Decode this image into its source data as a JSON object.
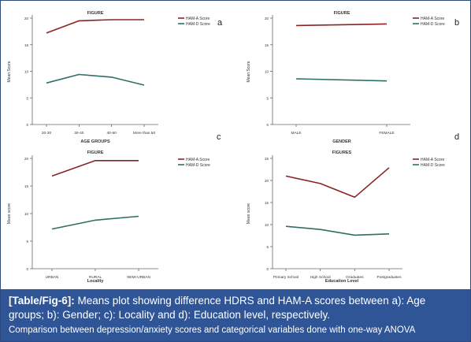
{
  "colors": {
    "anxiety": "#8b2323",
    "depression": "#2e6e66",
    "axis": "#666666",
    "caption_bg": "#2f5597"
  },
  "chart_data": [
    {
      "type": "line",
      "panel_letter": "a",
      "title": "FIGURE",
      "xlabel": "AGE GROUPS",
      "ylabel": "Mean Score",
      "categories": [
        "20-30",
        "30-40",
        "40-60",
        "More than 50"
      ],
      "ylim": [
        0,
        20
      ],
      "yticks": [
        "0",
        "5",
        "10",
        "15",
        "20"
      ],
      "grid": false,
      "legend": "top-right",
      "series": [
        {
          "name": "HAM-A Score",
          "values": [
            17.2,
            19.5,
            19.7,
            19.7
          ]
        },
        {
          "name": "HAM-D Score",
          "values": [
            7.8,
            9.4,
            8.9,
            7.4
          ]
        }
      ]
    },
    {
      "type": "line",
      "panel_letter": "b",
      "title": "FIGURE",
      "xlabel": "GENDER",
      "ylabel": "Mean Score",
      "categories": [
        "MALE",
        "FEMALE"
      ],
      "ylim": [
        0,
        20
      ],
      "yticks": [
        "0",
        "5",
        "10",
        "15",
        "20"
      ],
      "grid": false,
      "legend": "top-right",
      "series": [
        {
          "name": "HAM-A Score",
          "values": [
            18.6,
            18.9
          ]
        },
        {
          "name": "HAM-D Score",
          "values": [
            8.6,
            8.2
          ]
        }
      ]
    },
    {
      "type": "line",
      "panel_letter": "c",
      "title": "FIGURE",
      "xlabel": "Locality",
      "ylabel": "Mean score",
      "categories": [
        "URBAN",
        "RURAL",
        "SEMI URBAN"
      ],
      "ylim": [
        0,
        20
      ],
      "yticks": [
        "0",
        "5",
        "10",
        "15",
        "20"
      ],
      "grid": false,
      "legend": "top-right",
      "series": [
        {
          "name": "HAM-A Score",
          "values": [
            16.8,
            19.6,
            19.6
          ]
        },
        {
          "name": "HAM-D Score",
          "values": [
            7.2,
            8.8,
            9.5
          ]
        }
      ]
    },
    {
      "type": "line",
      "panel_letter": "d",
      "title": "FIGURES",
      "xlabel": "Education Level",
      "ylabel": "Mean score",
      "categories": [
        "Primary School",
        "High School",
        "Graduates",
        "Postgraduates"
      ],
      "ylim": [
        0,
        25
      ],
      "yticks": [
        "0",
        "5",
        "10",
        "15",
        "20",
        "25"
      ],
      "grid": false,
      "legend": "top-right",
      "series": [
        {
          "name": "HAM-A Score",
          "values": [
            21.0,
            19.3,
            16.2,
            22.9
          ]
        },
        {
          "name": "HAM-D Score",
          "values": [
            9.6,
            8.9,
            7.6,
            7.9
          ]
        }
      ]
    }
  ],
  "caption": {
    "label": "[Table/Fig-6]:",
    "text": " Means plot showing difference HDRS and HAM-A scores between a): Age groups; b): Gender; c): Locality and d): Education level, respectively.",
    "note": "Comparison between depression/anxiety scores and categorical variables done with one-way ANOVA"
  }
}
